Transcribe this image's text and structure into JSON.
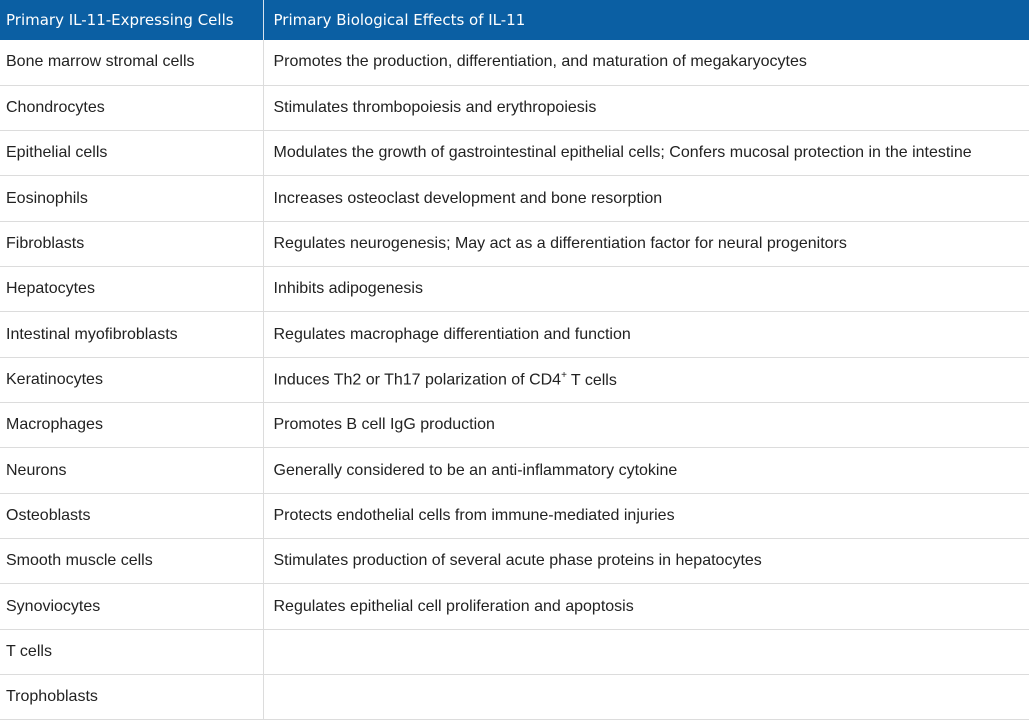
{
  "table": {
    "header": [
      "Primary IL-11-Expressing Cells",
      "Primary Biological Effects of IL-11"
    ],
    "rows": [
      [
        "Bone marrow stromal cells",
        "Promotes the production, differentiation, and maturation of megakaryocytes"
      ],
      [
        "Chondrocytes",
        "Stimulates thrombopoiesis and erythropoiesis"
      ],
      [
        "Epithelial cells",
        "Modulates the growth of gastrointestinal epithelial cells; Confers mucosal protection in the intestine"
      ],
      [
        "Eosinophils",
        "Increases osteoclast development and bone resorption"
      ],
      [
        "Fibroblasts",
        "Regulates neurogenesis; May act as a differentiation factor for neural progenitors"
      ],
      [
        "Hepatocytes",
        "Inhibits adipogenesis"
      ],
      [
        "Intestinal myofibroblasts",
        "Regulates macrophage differentiation and function"
      ],
      [
        "Keratinocytes",
        {
          "text": "Induces Th2 or Th17 polarization of CD4",
          "sup": "+",
          "after": "T cells"
        }
      ],
      [
        "Macrophages",
        "Promotes B cell IgG production"
      ],
      [
        "Neurons",
        "Generally considered to be an anti-inflammatory cytokine"
      ],
      [
        "Osteoblasts",
        "Protects endothelial cells from immune-mediated injuries"
      ],
      [
        "Smooth muscle cells",
        "Stimulates production of several acute phase proteins in hepatocytes"
      ],
      [
        "Synoviocytes",
        "Regulates epithelial cell proliferation and apoptosis"
      ],
      [
        "T cells"
      ],
      [
        "Trophoblasts"
      ]
    ]
  }
}
